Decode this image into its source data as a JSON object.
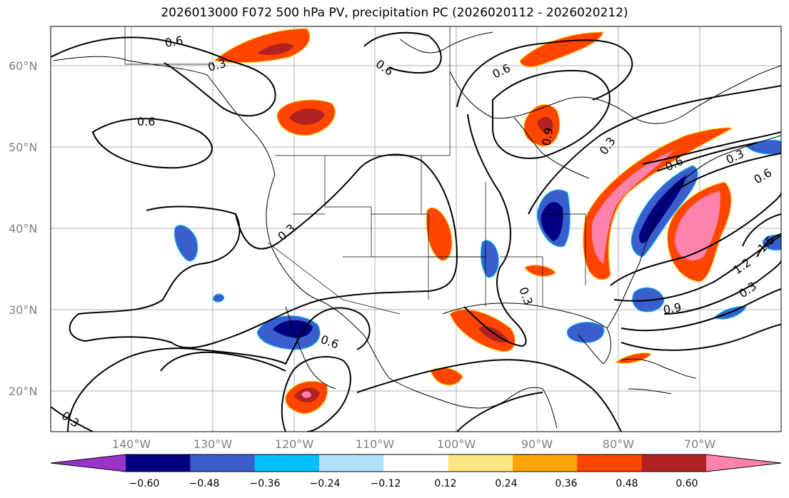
{
  "title": "2026013000 F072 500 hPa PV, precipitation PC (2026020112 - 2026020212)",
  "lat_labels": [
    "60°N",
    "50°N",
    "40°N",
    "30°N",
    "20°N"
  ],
  "lon_labels": [
    "140°W",
    "130°W",
    "120°W",
    "110°W",
    "100°W",
    "90°W",
    "80°W",
    "70°W"
  ],
  "colorbar": {
    "tick_labels": [
      "−0.60",
      "−0.48",
      "−0.36",
      "−0.24",
      "−0.12",
      "0.12",
      "0.24",
      "0.36",
      "0.48",
      "0.60"
    ],
    "colors": [
      "#9933cc",
      "#000080",
      "#3a5fcd",
      "#00bfff",
      "#b0e2ff",
      "#ffffff",
      "#ffe680",
      "#ffa500",
      "#ff4500",
      "#b22222",
      "#ff82ab"
    ]
  },
  "contour_labels": [
    "0.6",
    "0.3",
    "0.6",
    "0.6",
    "0.3",
    "0.6",
    "0.9",
    "0.6",
    "0.3",
    "0.6",
    "0.3",
    "0.3",
    "0.9",
    "0.3",
    "1.2",
    "1.5",
    "0.3",
    "0.6"
  ],
  "colors": {
    "neg_dark": "#000080",
    "neg_mid": "#3a5fcd",
    "neg_light": "#00bfff",
    "pos_orange": "#ff4500",
    "pos_dark": "#b22222",
    "pos_pink": "#ff82ab",
    "pos_yellow": "#ffd700",
    "grid": "#b0b0b0"
  }
}
